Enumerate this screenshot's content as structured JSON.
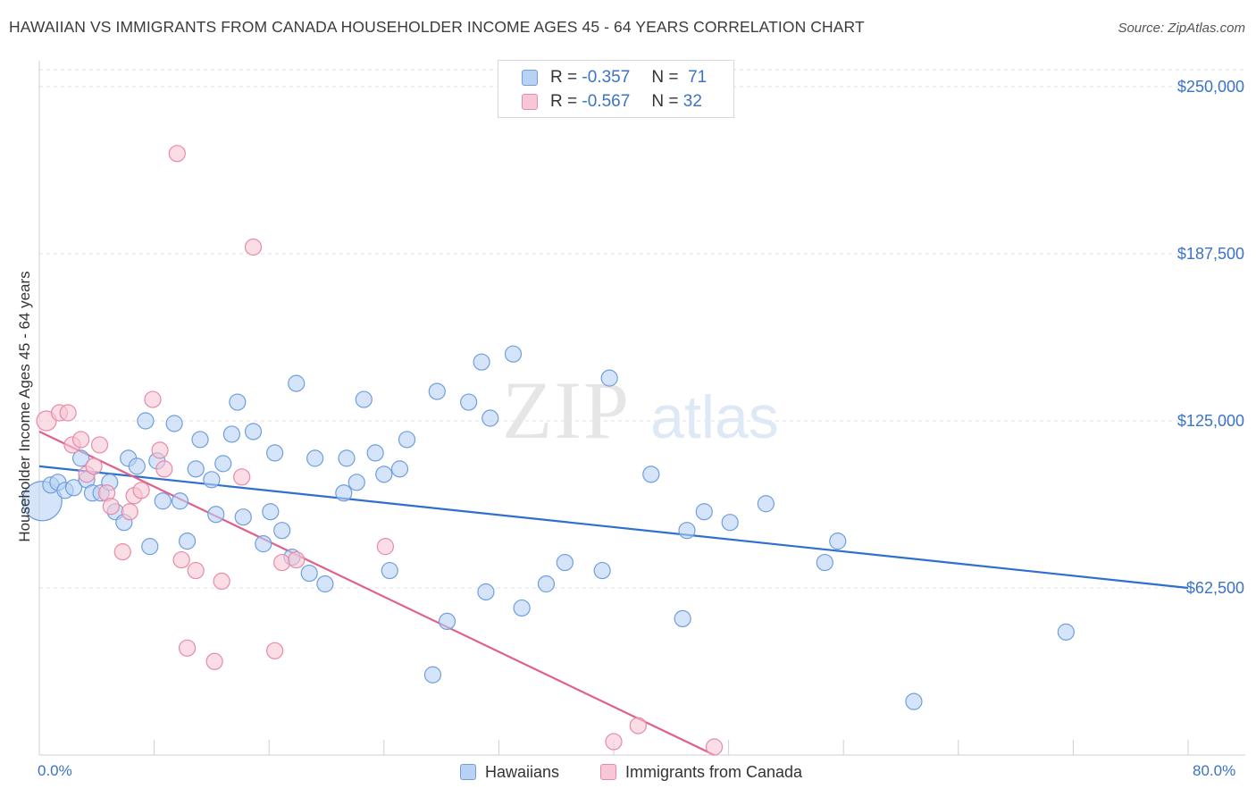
{
  "title": "HAWAIIAN VS IMMIGRANTS FROM CANADA HOUSEHOLDER INCOME AGES 45 - 64 YEARS CORRELATION CHART",
  "source": "Source: ZipAtlas.com",
  "watermark": {
    "zip": "ZIP",
    "atlas": "atlas"
  },
  "legend": {
    "r_label": "R =",
    "n_label": "N =",
    "rows": [
      {
        "r": "-0.357",
        "n": "71"
      },
      {
        "r": "-0.567",
        "n": "32"
      }
    ]
  },
  "colors": {
    "blue_fill": "#b9d2f3",
    "blue_stroke": "#6e9fdd",
    "blue_line": "#2e6fcf",
    "pink_fill": "#f8c7d6",
    "pink_stroke": "#e88aa8",
    "pink_line": "#e0608c",
    "axis_text": "#3b73c6"
  },
  "chart_data": {
    "type": "scatter",
    "title": "HAWAIIAN VS IMMIGRANTS FROM CANADA HOUSEHOLDER INCOME AGES 45 - 64 YEARS CORRELATION CHART",
    "xlabel": "",
    "ylabel": "Householder Income Ages 45 - 64 years",
    "xlim": [
      0,
      80
    ],
    "ylim": [
      0,
      262500
    ],
    "x_tick_labels": [
      "0.0%",
      "80.0%"
    ],
    "y_ticks": [
      62500,
      125000,
      187500,
      250000
    ],
    "y_tick_labels": [
      "$62,500",
      "$125,000",
      "$187,500",
      "$250,000"
    ],
    "series": [
      {
        "name": "Hawaiians",
        "color": "#6e9fdd",
        "trend": {
          "x": [
            0,
            80
          ],
          "y": [
            108000,
            62500
          ]
        },
        "points": [
          [
            0.2,
            95000,
            22
          ],
          [
            0.8,
            101000,
            9
          ],
          [
            1.3,
            102000,
            9
          ],
          [
            1.8,
            99000,
            9
          ],
          [
            2.4,
            100000,
            9
          ],
          [
            2.9,
            111000,
            9
          ],
          [
            3.3,
            103000,
            9
          ],
          [
            3.7,
            98000,
            9
          ],
          [
            4.3,
            98000,
            9
          ],
          [
            4.9,
            102000,
            9
          ],
          [
            5.3,
            91000,
            9
          ],
          [
            5.9,
            87000,
            9
          ],
          [
            6.2,
            111000,
            9
          ],
          [
            6.8,
            108000,
            9
          ],
          [
            7.4,
            125000,
            9
          ],
          [
            7.7,
            78000,
            9
          ],
          [
            8.2,
            110000,
            9
          ],
          [
            8.6,
            95000,
            9
          ],
          [
            9.4,
            124000,
            9
          ],
          [
            9.8,
            95000,
            9
          ],
          [
            10.3,
            80000,
            9
          ],
          [
            10.9,
            107000,
            9
          ],
          [
            11.2,
            118000,
            9
          ],
          [
            12.0,
            103000,
            9
          ],
          [
            12.3,
            90000,
            9
          ],
          [
            12.8,
            109000,
            9
          ],
          [
            13.4,
            120000,
            9
          ],
          [
            13.8,
            132000,
            9
          ],
          [
            14.2,
            89000,
            9
          ],
          [
            14.9,
            121000,
            9
          ],
          [
            15.6,
            79000,
            9
          ],
          [
            16.1,
            91000,
            9
          ],
          [
            16.4,
            113000,
            9
          ],
          [
            16.9,
            84000,
            9
          ],
          [
            17.6,
            74000,
            9
          ],
          [
            17.9,
            139000,
            9
          ],
          [
            18.8,
            68000,
            9
          ],
          [
            19.2,
            111000,
            9
          ],
          [
            19.9,
            64000,
            9
          ],
          [
            21.2,
            98000,
            9
          ],
          [
            21.4,
            111000,
            9
          ],
          [
            22.1,
            102000,
            9
          ],
          [
            22.6,
            133000,
            9
          ],
          [
            23.4,
            113000,
            9
          ],
          [
            24.0,
            105000,
            9
          ],
          [
            24.4,
            69000,
            9
          ],
          [
            25.1,
            107000,
            9
          ],
          [
            25.6,
            118000,
            9
          ],
          [
            27.4,
            30000,
            9
          ],
          [
            27.7,
            136000,
            9
          ],
          [
            28.4,
            50000,
            9
          ],
          [
            29.9,
            132000,
            9
          ],
          [
            30.8,
            147000,
            9
          ],
          [
            31.1,
            61000,
            9
          ],
          [
            31.4,
            126000,
            9
          ],
          [
            33.0,
            150000,
            9
          ],
          [
            33.6,
            55000,
            9
          ],
          [
            35.3,
            64000,
            9
          ],
          [
            36.6,
            72000,
            9
          ],
          [
            39.2,
            69000,
            9
          ],
          [
            39.7,
            141000,
            9
          ],
          [
            42.6,
            105000,
            9
          ],
          [
            44.8,
            51000,
            9
          ],
          [
            45.1,
            84000,
            9
          ],
          [
            46.3,
            91000,
            9
          ],
          [
            48.1,
            87000,
            9
          ],
          [
            50.6,
            94000,
            9
          ],
          [
            54.7,
            72000,
            9
          ],
          [
            55.6,
            80000,
            9
          ],
          [
            60.9,
            20000,
            9
          ],
          [
            71.5,
            46000,
            9
          ]
        ]
      },
      {
        "name": "Immigrants from Canada",
        "color": "#e88aa8",
        "trend": {
          "x": [
            0,
            47
          ],
          "y": [
            121000,
            0
          ]
        },
        "points": [
          [
            0.5,
            125000,
            11
          ],
          [
            1.4,
            128000,
            9
          ],
          [
            2.0,
            128000,
            9
          ],
          [
            2.3,
            116000,
            9
          ],
          [
            2.9,
            118000,
            9
          ],
          [
            3.3,
            105000,
            9
          ],
          [
            3.8,
            108000,
            9
          ],
          [
            4.2,
            116000,
            9
          ],
          [
            4.7,
            98000,
            9
          ],
          [
            5.0,
            93000,
            9
          ],
          [
            5.8,
            76000,
            9
          ],
          [
            6.3,
            91000,
            9
          ],
          [
            6.6,
            97000,
            9
          ],
          [
            7.1,
            99000,
            9
          ],
          [
            7.9,
            133000,
            9
          ],
          [
            8.4,
            114000,
            9
          ],
          [
            8.7,
            107000,
            9
          ],
          [
            9.6,
            225000,
            9
          ],
          [
            9.9,
            73000,
            9
          ],
          [
            10.3,
            40000,
            9
          ],
          [
            10.9,
            69000,
            9
          ],
          [
            12.2,
            35000,
            9
          ],
          [
            12.7,
            65000,
            9
          ],
          [
            14.1,
            104000,
            9
          ],
          [
            14.9,
            190000,
            9
          ],
          [
            16.4,
            39000,
            9
          ],
          [
            16.9,
            72000,
            9
          ],
          [
            17.9,
            73000,
            9
          ],
          [
            24.1,
            78000,
            9
          ],
          [
            40.0,
            5000,
            9
          ],
          [
            41.7,
            11000,
            9
          ],
          [
            47.0,
            3000,
            9
          ]
        ]
      }
    ]
  },
  "bottom_legend": [
    "Hawaiians",
    "Immigrants from Canada"
  ]
}
